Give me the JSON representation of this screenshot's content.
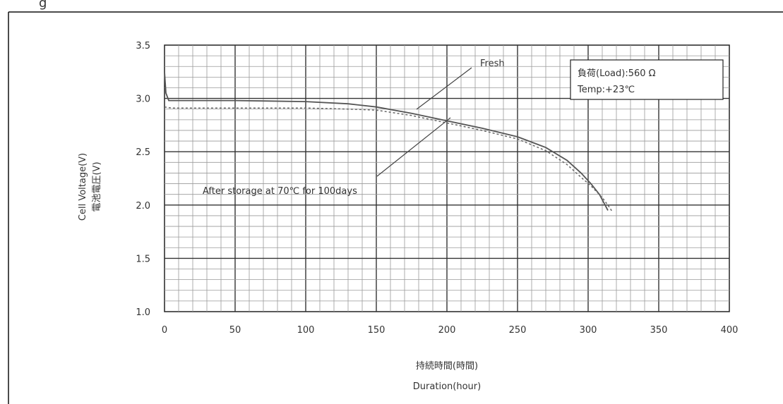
{
  "page": {
    "top_caption_fragment": "g"
  },
  "chart_data": {
    "type": "line",
    "xlabel_ja": "持続時間(時間)",
    "xlabel_en": "Duration(hour)",
    "ylabel_en": "Cell Voltage(V)",
    "ylabel_ja": "電池電圧(V)",
    "xlim": [
      0,
      400
    ],
    "ylim": [
      1.0,
      3.5
    ],
    "x_ticks": [
      0,
      50,
      100,
      150,
      200,
      250,
      300,
      350,
      400
    ],
    "y_ticks": [
      "1.0",
      "1.5",
      "2.0",
      "2.5",
      "3.0",
      "3.5"
    ],
    "grid": true,
    "series": [
      {
        "name": "Fresh",
        "style": "solid",
        "color": "#555555",
        "x": [
          0,
          1,
          3,
          10,
          50,
          100,
          130,
          150,
          175,
          200,
          225,
          250,
          270,
          285,
          295,
          302,
          308,
          312,
          314
        ],
        "y": [
          3.25,
          3.05,
          2.98,
          2.98,
          2.98,
          2.97,
          2.95,
          2.92,
          2.86,
          2.79,
          2.72,
          2.64,
          2.54,
          2.42,
          2.3,
          2.2,
          2.1,
          2.0,
          1.95
        ]
      },
      {
        "name": "After storage at 70℃ for 100days",
        "style": "dashed",
        "color": "#666666",
        "x": [
          0,
          5,
          50,
          100,
          130,
          150,
          175,
          200,
          225,
          250,
          270,
          285,
          295,
          302,
          310,
          315,
          317
        ],
        "y": [
          2.92,
          2.91,
          2.91,
          2.91,
          2.9,
          2.89,
          2.84,
          2.77,
          2.7,
          2.62,
          2.51,
          2.38,
          2.26,
          2.18,
          2.07,
          1.98,
          1.94
        ]
      }
    ],
    "annotations": [
      {
        "text": "Fresh"
      },
      {
        "text": "After storage at 70℃ for 100days"
      }
    ],
    "legend_box": {
      "line1": "負荷(Load):560 Ω",
      "line2": "Temp:+23℃",
      "placement": "top-right"
    }
  }
}
